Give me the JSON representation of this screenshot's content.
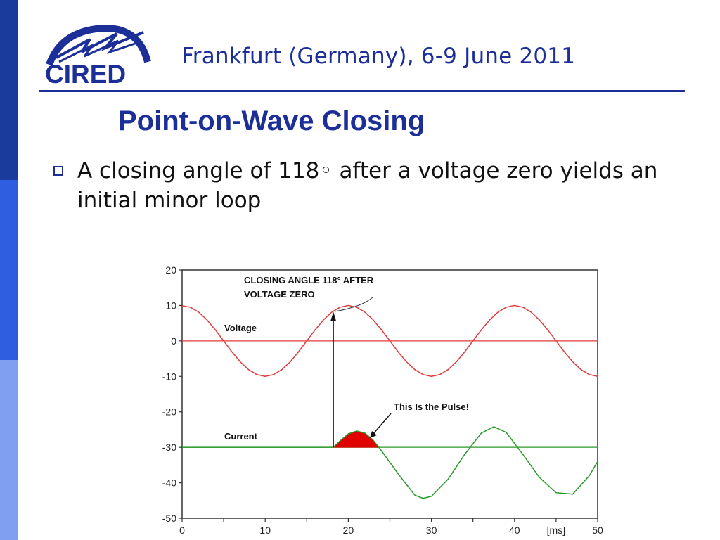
{
  "header": {
    "logo_text": "CIRED",
    "title": "Frankfurt (Germany), 6-9 June 2011"
  },
  "slide": {
    "title": "Point-on-Wave Closing",
    "bullets": [
      "A closing angle of 118◦ after a voltage zero yields an initial minor loop"
    ]
  },
  "colors": {
    "brand_blue": "#1c2f99",
    "voltage": "#e03a3a",
    "current": "#2a9a2a",
    "pulse": "#e00000"
  },
  "chart_data": {
    "type": "line",
    "xlim": [
      0,
      50
    ],
    "ylim": [
      -50,
      20
    ],
    "x_ticks": [
      0,
      10,
      20,
      30,
      40,
      50
    ],
    "x_unit_label": "[ms]",
    "y_ticks": [
      20,
      10,
      0,
      -10,
      -20,
      -30,
      -40,
      -50
    ],
    "series": [
      {
        "name": "Voltage",
        "x": [
          0,
          1,
          2,
          3,
          4,
          5,
          6,
          7,
          8,
          9,
          10,
          11,
          12,
          13,
          14,
          15,
          16,
          17,
          18,
          19,
          20,
          21,
          22,
          23,
          24,
          25,
          26,
          27,
          28,
          29,
          30,
          31,
          32,
          33,
          34,
          35,
          36,
          37,
          38,
          39,
          40,
          41,
          42,
          43,
          44,
          45,
          46,
          47,
          48,
          49,
          50
        ],
        "values": [
          9.9,
          9.5,
          8.1,
          5.9,
          3.1,
          0.0,
          -3.1,
          -5.9,
          -8.1,
          -9.5,
          -10.0,
          -9.5,
          -8.1,
          -5.9,
          -3.1,
          0.0,
          3.1,
          5.9,
          8.1,
          9.5,
          10.0,
          9.5,
          8.1,
          5.9,
          3.1,
          0.0,
          -3.1,
          -5.9,
          -8.1,
          -9.5,
          -10.0,
          -9.5,
          -8.1,
          -5.9,
          -3.1,
          0.0,
          3.1,
          5.9,
          8.1,
          9.5,
          10.0,
          9.5,
          8.1,
          5.9,
          3.1,
          0.0,
          -3.1,
          -5.9,
          -8.1,
          -9.5,
          -10.0
        ]
      },
      {
        "name": "Current",
        "x": [
          0,
          5,
          10,
          15,
          18.2,
          19,
          20,
          21,
          22,
          23,
          24,
          26,
          28,
          29,
          30,
          32,
          34,
          36,
          37.5,
          39,
          41,
          43,
          45,
          47,
          49,
          50
        ],
        "values": [
          -30,
          -30,
          -30,
          -30,
          -30,
          -28.2,
          -26.2,
          -25.4,
          -26.0,
          -28.0,
          -31.0,
          -37.5,
          -43.5,
          -44.4,
          -43.8,
          -39.0,
          -32.0,
          -26.0,
          -24.2,
          -25.8,
          -32.0,
          -38.5,
          -42.8,
          -43.2,
          -38.0,
          -34.0
        ]
      }
    ],
    "reference_lines": [
      0,
      -30
    ],
    "pulse": {
      "x_start": 18.2,
      "x_end": 23.6,
      "peak": -25.4
    },
    "annotations": {
      "closing_angle": [
        "CLOSING ANGLE 118° AFTER",
        "VOLTAGE  ZERO"
      ],
      "voltage_label": "Voltage",
      "current_label": "Current",
      "pulse_label": "This Is the Pulse!"
    },
    "closing_marker_x": 18.2
  }
}
